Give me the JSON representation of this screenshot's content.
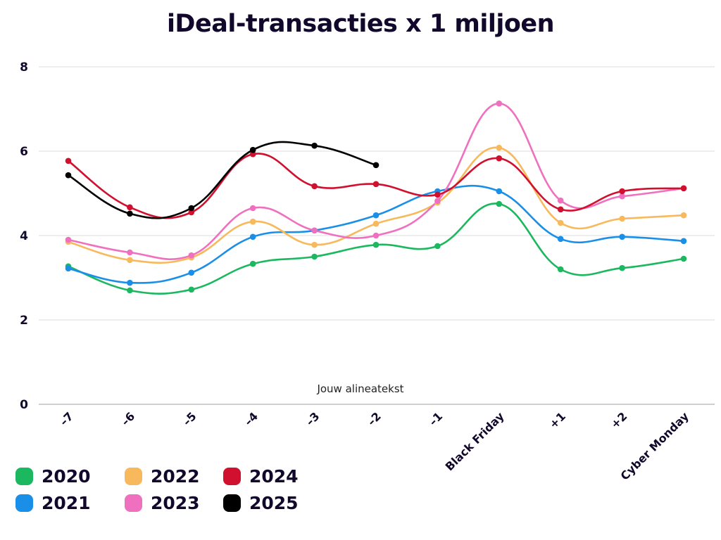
{
  "chart_data": {
    "type": "line",
    "title": "iDeal-transacties x 1 miljoen",
    "xlabel": "",
    "ylabel": "",
    "annotation": "Jouw alineatekst",
    "categories": [
      "-7",
      "-6",
      "-5",
      "-4",
      "-3",
      "-2",
      "-1",
      "Black Friday",
      "+1",
      "+2",
      "Cyber Monday"
    ],
    "ylim": [
      0,
      8
    ],
    "yticks": [
      0,
      2,
      4,
      6,
      8
    ],
    "grid": true,
    "smooth": true,
    "legend_position": "bottom-left",
    "series": [
      {
        "name": "2020",
        "color": "#1bb85f",
        "values": [
          3.27,
          2.7,
          2.72,
          3.33,
          3.5,
          3.78,
          3.75,
          4.75,
          3.2,
          3.23,
          3.45
        ]
      },
      {
        "name": "2021",
        "color": "#1a8fe8",
        "values": [
          3.22,
          2.88,
          3.12,
          3.97,
          4.12,
          4.48,
          5.05,
          5.05,
          3.92,
          3.97,
          3.87
        ]
      },
      {
        "name": "2022",
        "color": "#f7b95c",
        "values": [
          3.85,
          3.42,
          3.48,
          4.33,
          3.78,
          4.28,
          4.78,
          6.08,
          4.3,
          4.4,
          4.48
        ]
      },
      {
        "name": "2023",
        "color": "#f070c0",
        "values": [
          3.9,
          3.6,
          3.53,
          4.65,
          4.12,
          4.0,
          4.82,
          7.13,
          4.83,
          4.93,
          5.12
        ]
      },
      {
        "name": "2024",
        "color": "#d0102e",
        "values": [
          5.77,
          4.67,
          4.55,
          5.93,
          5.17,
          5.22,
          4.97,
          5.83,
          4.62,
          5.05,
          5.12
        ]
      },
      {
        "name": "2025",
        "color": "#000000",
        "values": [
          5.43,
          4.52,
          4.65,
          6.03,
          6.13,
          5.67,
          null,
          null,
          null,
          null,
          null
        ]
      }
    ]
  }
}
